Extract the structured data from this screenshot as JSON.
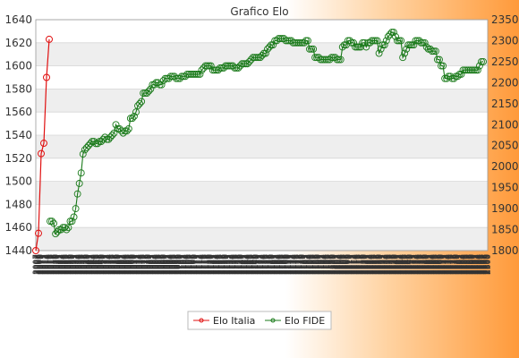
{
  "chart_data": {
    "type": "line",
    "title": "Grafico Elo",
    "colors": {
      "italia": "#e01010",
      "fide": "#1a7a1a",
      "band": "#eeeeee"
    },
    "y_left": {
      "min": 1440,
      "max": 1640,
      "ticks": [
        1440,
        1460,
        1480,
        1500,
        1520,
        1540,
        1560,
        1580,
        1600,
        1620,
        1640
      ]
    },
    "y_right": {
      "min": 1800,
      "max": 2350,
      "ticks": [
        1800,
        1850,
        1900,
        1950,
        2000,
        2050,
        2100,
        2150,
        2200,
        2250,
        2300,
        2350
      ]
    },
    "x_tick_labels": [
      "2007",
      "2007",
      "2008",
      "2008",
      "2009",
      "2009",
      "2010",
      "2010",
      "2011",
      "2011",
      "2012",
      "2012",
      "2013",
      "2013",
      "2014",
      "2014",
      "2015",
      "2015",
      "2016",
      "2016",
      "2017",
      "2017",
      "2018",
      "2018",
      "2019",
      "2019",
      "2020",
      "2020",
      "2021",
      "2021",
      "2022",
      "2022",
      "2023",
      "2023",
      "2024",
      "2024",
      "2025",
      "2025",
      "2026",
      "2026",
      "2027",
      "2027",
      "2028",
      "2028",
      "2029",
      "2029",
      "2030",
      "2030",
      "2031",
      "2031",
      "2032",
      "2032",
      "2033",
      "2033",
      "2034",
      "2034",
      "2035",
      "2035",
      "2036",
      "2036",
      "2037",
      "2037",
      "2038",
      "2038",
      "2039",
      "2039",
      "2040",
      "2040",
      "2041",
      "2041",
      "2042",
      "2042",
      "2043",
      "2043",
      "2044",
      "2044",
      "2045",
      "2045",
      "2046",
      "2046",
      "2047",
      "2047",
      "2048",
      "2048",
      "2049",
      "2049",
      "2050",
      "2050",
      "2051",
      "2051",
      "2052",
      "2052",
      "2053",
      "2053",
      "2054",
      "2054",
      "2055",
      "2055",
      "2056",
      "2056",
      "2057",
      "2057",
      "2058",
      "2058",
      "2059",
      "2059",
      "2060",
      "2060",
      "2061",
      "2061",
      "2062",
      "2062",
      "2063",
      "2063",
      "2064",
      "2064",
      "2065",
      "2065",
      "2066",
      "2066",
      "2067",
      "2067",
      "2068",
      "2068",
      "2069",
      "2069",
      "2070",
      "2070",
      "2071",
      "2071",
      "2072",
      "2072",
      "2073",
      "2073",
      "2074",
      "2074",
      "2075",
      "2075",
      "2076",
      "2076",
      "2077",
      "2077",
      "2078",
      "2078",
      "2079",
      "2079",
      "2080",
      "2080",
      "2081",
      "2081",
      "2082",
      "2082",
      "2083",
      "2083",
      "2084",
      "2084",
      "2085",
      "2085",
      "2086",
      "2086",
      "2087",
      "2087",
      "2088",
      "2088",
      "2089",
      "2089",
      "2090",
      "2090",
      "2091",
      "2091",
      "2092",
      "2092",
      "2093",
      "2093",
      "2094",
      "2094",
      "2095",
      "2095",
      "2096",
      "2096",
      "2097",
      "2097",
      "2098",
      "2098",
      "2099",
      "2099",
      "2100",
      "2100",
      "2101",
      "2101",
      "2102",
      "2102",
      "2103",
      "2103",
      "2104",
      "2104",
      "2105",
      "2105",
      "2106",
      "2106",
      "2107",
      "2107",
      "2108",
      "2108",
      "2109",
      "2109",
      "2110",
      "2110",
      "2111",
      "2111",
      "2112",
      "2112",
      "2113",
      "2113",
      "2114",
      "2114",
      "2115",
      "2115",
      "2116",
      "2116",
      "2117",
      "2117",
      "2118",
      "2118",
      "2119",
      "2119",
      "2120",
      "2120",
      "2121",
      "2121",
      "2122",
      "2122",
      "2123",
      "2123",
      "2124",
      "2124",
      "2125",
      "2125",
      "2126",
      "2126",
      "2127",
      "2127",
      "2128",
      "2128",
      "2129",
      "2129",
      "2130",
      "2130",
      "2131",
      "2131",
      "2132",
      "2132",
      "2133",
      "2133",
      "2134",
      "2134",
      "2135",
      "2135",
      "2136",
      "2136",
      "2137",
      "2137",
      "2138",
      "2138",
      "2139",
      "2139",
      "2140",
      "2140",
      "2141",
      "2141",
      "2142",
      "2142",
      "2143",
      "2143",
      "2144",
      "2144",
      "2145",
      "2145",
      "2146",
      "2146",
      "2147",
      "2147",
      "2148",
      "2148",
      "2149",
      "2149",
      "2150",
      "2150",
      "2151",
      "2151",
      "2152",
      "2152",
      "2153",
      "2153",
      "2154",
      "2154",
      "2155",
      "2155",
      "2156",
      "2156",
      "2157",
      "2157",
      "2158",
      "2158",
      "2159",
      "2159",
      "2160",
      "2160",
      "2161",
      "2161",
      "2162",
      "2162",
      "2163",
      "2163",
      "2164",
      "2164",
      "2165",
      "2165",
      "2166",
      "2166",
      "2167",
      "2167",
      "2168",
      "2168",
      "2169",
      "2169",
      "2170",
      "2170",
      "2171",
      "2171",
      "2172",
      "2172",
      "2173",
      "2173",
      "2174",
      "2174",
      "2175",
      "2175",
      "2176",
      "2176",
      "2177",
      "2177",
      "2178",
      "2178",
      "2179",
      "2179",
      "2180",
      "2180",
      "2181",
      "2181",
      "2182",
      "2182",
      "2183",
      "2183",
      "2184",
      "2184",
      "2185",
      "2185",
      "2186",
      "2186",
      "2187",
      "2187",
      "2188",
      "2188",
      "2189",
      "2189",
      "2190",
      "2190",
      "2191",
      "2191",
      "2192",
      "2192",
      "2193",
      "2193",
      "2194",
      "2194",
      "2195",
      "2195",
      "2196",
      "2196",
      "2197",
      "2197",
      "2198",
      "2198",
      "2199",
      "2199",
      "2200",
      "2200",
      "2201",
      "2201",
      "2202",
      "2202",
      "2203",
      "2203",
      "2204",
      "2204",
      "2205",
      "2205",
      "2206",
      "2206",
      "2207",
      "2207",
      "2208",
      "2208",
      "2209",
      "2209",
      "2210",
      "2210",
      "2211",
      "2211",
      "2212",
      "2212",
      "2213",
      "2213",
      "2214",
      "2214",
      "2215",
      "2215",
      "2216",
      "2216",
      "2217",
      "2217",
      "2218",
      "2218",
      "2219",
      "2219",
      "2220",
      "2220",
      "2221",
      "2221",
      "2222",
      "2222",
      "2223",
      "2223",
      "2224",
      "2224",
      "2225",
      "2225",
      "2226",
      "2226",
      "2227",
      "2227",
      "2228",
      "2228",
      "2229",
      "2229",
      "2230",
      "2230",
      "2231",
      "2231",
      "2232",
      "2232",
      "2233",
      "2233",
      "2234",
      "2234",
      "2235",
      "2235",
      "2236",
      "2236",
      "2237",
      "2237",
      "2238",
      "2238",
      "2239",
      "2239",
      "2240",
      "2240",
      "2241",
      "2241",
      "2242",
      "2242",
      "2243",
      "2243",
      "2244",
      "2244",
      "2245",
      "2245",
      "2246",
      "2246",
      "2247",
      "2247",
      "2248",
      "2248",
      "2249",
      "2249",
      "2250",
      "2250",
      "2251",
      "2251",
      "2252",
      "2252",
      "2253",
      "2253",
      "2254",
      "2254",
      "2255",
      "2255",
      "2256",
      "2256",
      "2257",
      "2257",
      "2258",
      "2258",
      "2259",
      "2259",
      "2260",
      "2260",
      "2261",
      "2261",
      "2262",
      "2262",
      "2263",
      "2263",
      "2264",
      "2264",
      "2265",
      "2265",
      "2266",
      "2266",
      "2267",
      "2267",
      "2268",
      "2268",
      "2269",
      "2269",
      "2270",
      "2270",
      "2271",
      "2271",
      "2272",
      "2272",
      "2273",
      "2273",
      "2274",
      "2274",
      "2275",
      "2275",
      "2276",
      "2276",
      "2277",
      "2277",
      "2278",
      "2278",
      "2279",
      "2279",
      "2280",
      "2280",
      "2281",
      "2281",
      "2282",
      "2282",
      "2283",
      "2283",
      "2284",
      "2284",
      "2285",
      "2285",
      "2286",
      "2286",
      "2287",
      "2287",
      "2288",
      "2288",
      "2289",
      "2289",
      "2290",
      "2290",
      "2291",
      "2291",
      "2292",
      "2292",
      "2293",
      "2293",
      "2294",
      "2294",
      "2295",
      "2295",
      "2296",
      "2296",
      "2297",
      "2297",
      "2298",
      "2298",
      "2299",
      "2299",
      "2300",
      "2300"
    ],
    "series": [
      {
        "name": "Elo Italia",
        "axis": "left",
        "values": [
          1440,
          1455,
          1524,
          1533,
          1590,
          1623
        ]
      },
      {
        "name": "Elo FIDE",
        "axis": "right",
        "values": [
          1870,
          1870,
          1865,
          1840,
          1845,
          1850,
          1850,
          1855,
          1855,
          1850,
          1855,
          1870,
          1870,
          1880,
          1900,
          1935,
          1960,
          1985,
          2030,
          2040,
          2045,
          2050,
          2055,
          2060,
          2060,
          2055,
          2055,
          2060,
          2060,
          2065,
          2070,
          2065,
          2065,
          2070,
          2075,
          2080,
          2100,
          2090,
          2090,
          2085,
          2080,
          2085,
          2085,
          2090,
          2115,
          2115,
          2120,
          2130,
          2145,
          2150,
          2155,
          2175,
          2175,
          2175,
          2180,
          2185,
          2195,
          2195,
          2200,
          2200,
          2195,
          2195,
          2205,
          2210,
          2210,
          2210,
          2215,
          2215,
          2215,
          2210,
          2210,
          2210,
          2215,
          2215,
          2215,
          2220,
          2220,
          2220,
          2220,
          2220,
          2220,
          2220,
          2220,
          2230,
          2235,
          2240,
          2240,
          2240,
          2240,
          2230,
          2230,
          2230,
          2230,
          2235,
          2235,
          2235,
          2240,
          2240,
          2240,
          2240,
          2240,
          2235,
          2235,
          2235,
          2240,
          2245,
          2245,
          2245,
          2245,
          2250,
          2255,
          2260,
          2260,
          2260,
          2260,
          2260,
          2265,
          2270,
          2270,
          2280,
          2285,
          2290,
          2290,
          2300,
          2300,
          2305,
          2305,
          2305,
          2305,
          2300,
          2300,
          2300,
          2300,
          2295,
          2295,
          2295,
          2295,
          2295,
          2295,
          2295,
          2300,
          2300,
          2280,
          2280,
          2280,
          2260,
          2260,
          2260,
          2255,
          2255,
          2255,
          2255,
          2255,
          2255,
          2260,
          2260,
          2260,
          2255,
          2255,
          2255,
          2285,
          2290,
          2290,
          2300,
          2300,
          2295,
          2295,
          2285,
          2285,
          2285,
          2285,
          2295,
          2295,
          2285,
          2295,
          2295,
          2300,
          2300,
          2300,
          2300,
          2270,
          2280,
          2290,
          2290,
          2300,
          2310,
          2315,
          2320,
          2320,
          2310,
          2300,
          2300,
          2300,
          2260,
          2270,
          2280,
          2290,
          2290,
          2290,
          2290,
          2300,
          2300,
          2300,
          2295,
          2295,
          2295,
          2285,
          2280,
          2280,
          2275,
          2275,
          2275,
          2255,
          2255,
          2240,
          2240,
          2210,
          2210,
          2215,
          2215,
          2210,
          2210,
          2215,
          2215,
          2220,
          2220,
          2230,
          2230,
          2230,
          2230,
          2230,
          2230,
          2230,
          2230,
          2230,
          2240,
          2250,
          2250
        ]
      }
    ]
  },
  "legend": {
    "items": [
      {
        "label": "Elo Italia",
        "color": "#e01010"
      },
      {
        "label": "Elo FIDE",
        "color": "#1a7a1a"
      }
    ]
  }
}
